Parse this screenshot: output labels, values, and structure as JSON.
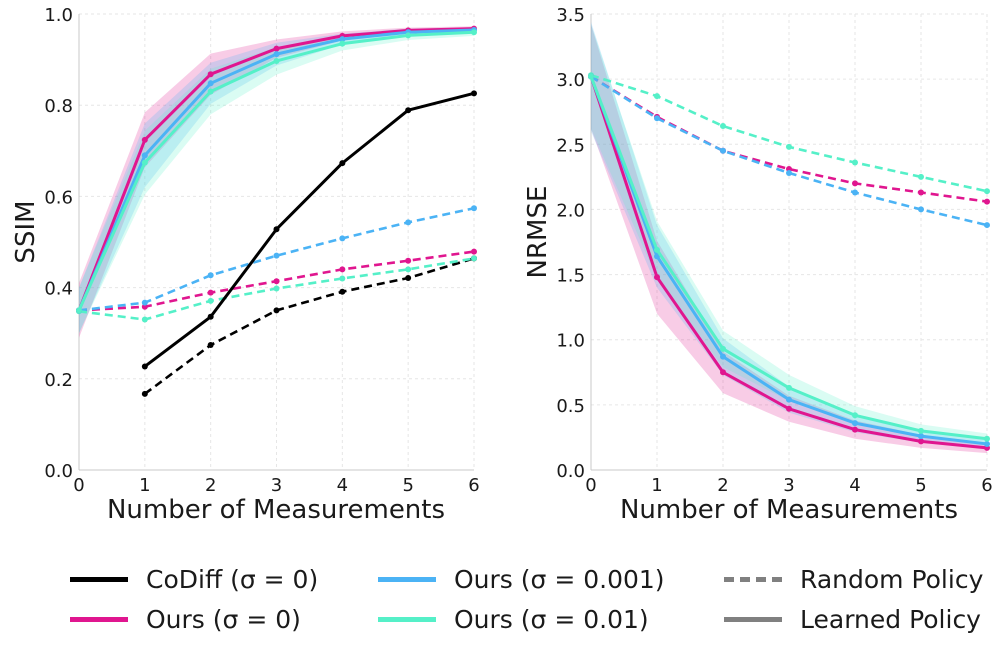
{
  "chart_data": [
    {
      "type": "line",
      "ylabel": "SSIM",
      "xlabel": "Number of Measurements",
      "x": [
        0,
        1,
        2,
        3,
        4,
        5,
        6
      ],
      "xlim": [
        0,
        6
      ],
      "ylim": [
        0.0,
        1.0
      ],
      "xticks": [
        "0",
        "1",
        "2",
        "3",
        "4",
        "5",
        "6"
      ],
      "yticks": [
        "0.0",
        "0.2",
        "0.4",
        "0.6",
        "0.8",
        "1.0"
      ],
      "grid": true,
      "series": [
        {
          "name": "CoDiff (σ=0) Learned Policy",
          "method": "codiff",
          "policy": "learned",
          "x": [
            1,
            2,
            3,
            4,
            5,
            6
          ],
          "values": [
            0.227,
            0.336,
            0.528,
            0.673,
            0.789,
            0.826
          ]
        },
        {
          "name": "CoDiff (σ=0) Random Policy",
          "method": "codiff",
          "policy": "random",
          "x": [
            1,
            2,
            3,
            4,
            5,
            6
          ],
          "values": [
            0.167,
            0.274,
            0.35,
            0.391,
            0.421,
            0.464
          ]
        },
        {
          "name": "Ours (σ=0) Learned Policy",
          "method": "ours0",
          "policy": "learned",
          "x": [
            0,
            1,
            2,
            3,
            4,
            5,
            6
          ],
          "values": [
            0.35,
            0.724,
            0.868,
            0.924,
            0.952,
            0.964,
            0.968
          ],
          "band": [
            0.06,
            0.06,
            0.045,
            0.02,
            0.01,
            0.006,
            0.005
          ]
        },
        {
          "name": "Ours (σ=0.001) Learned Policy",
          "method": "ours001",
          "policy": "learned",
          "x": [
            0,
            1,
            2,
            3,
            4,
            5,
            6
          ],
          "values": [
            0.35,
            0.69,
            0.848,
            0.912,
            0.945,
            0.96,
            0.965
          ],
          "band": [
            0.05,
            0.07,
            0.045,
            0.025,
            0.012,
            0.008,
            0.006
          ]
        },
        {
          "name": "Ours (σ=0.01) Learned Policy",
          "method": "ours01",
          "policy": "learned",
          "x": [
            0,
            1,
            2,
            3,
            4,
            5,
            6
          ],
          "values": [
            0.35,
            0.674,
            0.83,
            0.897,
            0.935,
            0.953,
            0.96
          ],
          "band": [
            0.05,
            0.07,
            0.05,
            0.03,
            0.015,
            0.01,
            0.008
          ]
        },
        {
          "name": "Ours (σ=0) Random Policy",
          "method": "ours0",
          "policy": "random",
          "x": [
            0,
            1,
            2,
            3,
            4,
            5,
            6
          ],
          "values": [
            0.35,
            0.358,
            0.389,
            0.414,
            0.44,
            0.459,
            0.479
          ]
        },
        {
          "name": "Ours (σ=0.001) Random Policy",
          "method": "ours001",
          "policy": "random",
          "x": [
            0,
            1,
            2,
            3,
            4,
            5,
            6
          ],
          "values": [
            0.35,
            0.367,
            0.427,
            0.47,
            0.508,
            0.543,
            0.574
          ]
        },
        {
          "name": "Ours (σ=0.01) Random Policy",
          "method": "ours01",
          "policy": "random",
          "x": [
            0,
            1,
            2,
            3,
            4,
            5,
            6
          ],
          "values": [
            0.348,
            0.33,
            0.371,
            0.398,
            0.42,
            0.44,
            0.464
          ]
        }
      ]
    },
    {
      "type": "line",
      "ylabel": "NRMSE",
      "xlabel": "Number of Measurements",
      "x": [
        0,
        1,
        2,
        3,
        4,
        5,
        6
      ],
      "xlim": [
        0,
        6
      ],
      "ylim": [
        0.0,
        3.5
      ],
      "xticks": [
        "0",
        "1",
        "2",
        "3",
        "4",
        "5",
        "6"
      ],
      "yticks": [
        "0.0",
        "0.5",
        "1.0",
        "1.5",
        "2.0",
        "2.5",
        "3.0",
        "3.5"
      ],
      "grid": true,
      "series": [
        {
          "name": "Ours (σ=0) Learned Policy",
          "method": "ours0",
          "policy": "learned",
          "x": [
            0,
            1,
            2,
            3,
            4,
            5,
            6
          ],
          "values": [
            3.02,
            1.48,
            0.75,
            0.47,
            0.31,
            0.22,
            0.17
          ],
          "band": [
            0.4,
            0.28,
            0.16,
            0.1,
            0.07,
            0.05,
            0.04
          ]
        },
        {
          "name": "Ours (σ=0.001) Learned Policy",
          "method": "ours001",
          "policy": "learned",
          "x": [
            0,
            1,
            2,
            3,
            4,
            5,
            6
          ],
          "values": [
            3.02,
            1.64,
            0.87,
            0.54,
            0.36,
            0.26,
            0.2
          ],
          "band": [
            0.42,
            0.24,
            0.14,
            0.1,
            0.07,
            0.05,
            0.04
          ]
        },
        {
          "name": "Ours (σ=0.01) Learned Policy",
          "method": "ours01",
          "policy": "learned",
          "x": [
            0,
            1,
            2,
            3,
            4,
            5,
            6
          ],
          "values": [
            3.02,
            1.69,
            0.93,
            0.63,
            0.42,
            0.3,
            0.24
          ],
          "band": [
            0.4,
            0.22,
            0.14,
            0.1,
            0.07,
            0.05,
            0.04
          ]
        },
        {
          "name": "Ours (σ=0) Random Policy",
          "method": "ours0",
          "policy": "random",
          "x": [
            0,
            1,
            2,
            3,
            4,
            5,
            6
          ],
          "values": [
            3.02,
            2.71,
            2.45,
            2.31,
            2.2,
            2.13,
            2.06
          ]
        },
        {
          "name": "Ours (σ=0.001) Random Policy",
          "method": "ours001",
          "policy": "random",
          "x": [
            0,
            1,
            2,
            3,
            4,
            5,
            6
          ],
          "values": [
            3.02,
            2.7,
            2.45,
            2.28,
            2.13,
            2.0,
            1.88
          ]
        },
        {
          "name": "Ours (σ=0.01) Random Policy",
          "method": "ours01",
          "policy": "random",
          "x": [
            0,
            1,
            2,
            3,
            4,
            5,
            6
          ],
          "values": [
            3.03,
            2.87,
            2.64,
            2.48,
            2.36,
            2.25,
            2.14
          ]
        }
      ]
    }
  ],
  "colors": {
    "codiff": "#000000",
    "ours0": "#e0168f",
    "ours001": "#4bb3f5",
    "ours01": "#55f0c8",
    "policy": "#808080",
    "grid": "#e6e6e6",
    "axis": "#c8c8c8"
  },
  "legend": {
    "items": [
      {
        "label": "CoDiff (σ = 0)",
        "color_key": "codiff",
        "style": "solid"
      },
      {
        "label": "Ours (σ = 0)",
        "color_key": "ours0",
        "style": "solid"
      },
      {
        "label": "Ours (σ = 0.001)",
        "color_key": "ours001",
        "style": "solid"
      },
      {
        "label": "Ours (σ = 0.01)",
        "color_key": "ours01",
        "style": "solid"
      },
      {
        "label": "Random Policy",
        "color_key": "policy",
        "style": "dashed"
      },
      {
        "label": "Learned Policy",
        "color_key": "policy",
        "style": "solid"
      }
    ]
  }
}
